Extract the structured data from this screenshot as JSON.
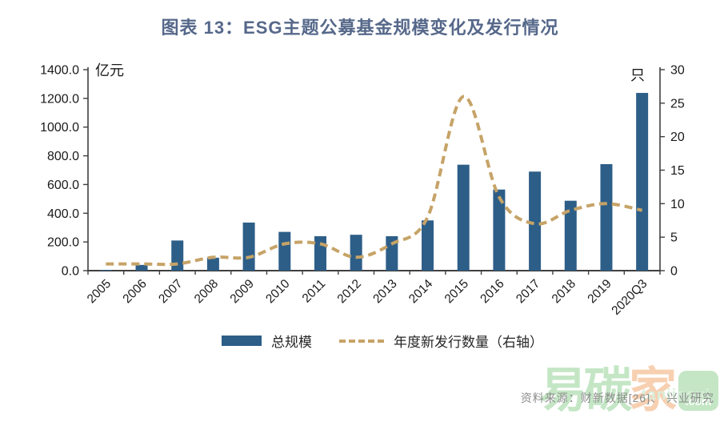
{
  "header": {
    "title": "图表 13：ESG主题公募基金规模变化及发行情况"
  },
  "chart_data": {
    "type": "bar",
    "title": "图表 13：ESG主题公募基金规模变化及发行情况",
    "categories": [
      "2005",
      "2006",
      "2007",
      "2008",
      "2009",
      "2010",
      "2011",
      "2012",
      "2013",
      "2014",
      "2015",
      "2016",
      "2017",
      "2018",
      "2019",
      "2020Q3"
    ],
    "series": [
      {
        "name": "总规模",
        "type": "bar",
        "axis": "left",
        "color": "#2d5e88",
        "values": [
          5,
          40,
          210,
          90,
          335,
          270,
          240,
          250,
          240,
          350,
          738,
          565,
          690,
          487,
          742,
          1238
        ]
      },
      {
        "name": "年度新发行数量（右轴）",
        "type": "line",
        "axis": "right",
        "color": "#c6a367",
        "style": "dashed",
        "smooth": true,
        "values": [
          1,
          1,
          1,
          2,
          2,
          4,
          4,
          2,
          4,
          8,
          26,
          11,
          7,
          9,
          10,
          9
        ]
      }
    ],
    "left_axis": {
      "label": "亿元",
      "min": 0,
      "max": 1400,
      "step": 200,
      "tick_labels": [
        "0.0",
        "200.0",
        "400.0",
        "600.0",
        "800.0",
        "1000.0",
        "1200.0",
        "1400.0"
      ]
    },
    "right_axis": {
      "label": "只",
      "min": 0,
      "max": 30,
      "step": 5,
      "tick_labels": [
        "0",
        "5",
        "10",
        "15",
        "20",
        "25",
        "30"
      ]
    },
    "grid": false,
    "legend_position": "bottom"
  },
  "colors": {
    "title": "#56688a",
    "axis_line": "#404040",
    "axis_text": "#1a1a1a",
    "source_text": "#8c8c8c"
  },
  "footer": {
    "source_text": "资料来源：财新数据[26]、 兴业研究",
    "watermark": {
      "char_1": "易",
      "char_2": "碳",
      "char_3": "家",
      "latin": "tanjiaoyi",
      "suffix": ".com"
    }
  }
}
